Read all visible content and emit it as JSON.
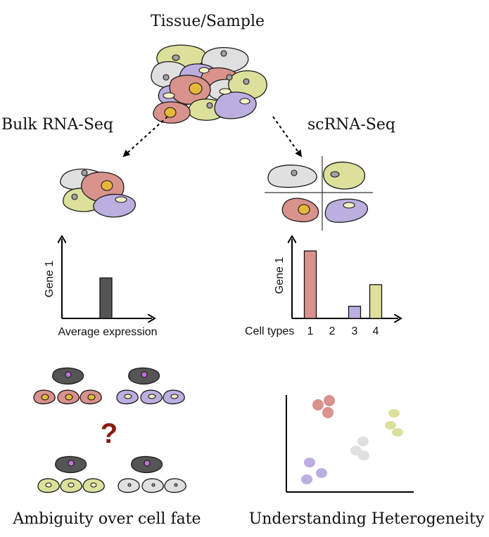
{
  "titles": {
    "top": "Tissue/Sample",
    "left_method": "Bulk RNA-Seq",
    "right_method": "scRNA-Seq",
    "bottom_left": "Ambiguity over cell fate",
    "bottom_right": "Understanding Heterogeneity"
  },
  "colors": {
    "pink": "#d9928c",
    "green": "#dde09b",
    "purple": "#bdaee0",
    "gray": "#e0e0e0",
    "dark": "#555555",
    "yellow_nucleus": "#e6b83a",
    "magenta_nucleus": "#c070d8",
    "question": "#8b1a10"
  },
  "bulk_chart": {
    "ylabel": "Gene 1",
    "xlabel": "Average expression",
    "value": 0.6
  },
  "sc_chart": {
    "ylabel": "Gene 1",
    "xlabel": "Cell types",
    "categories": [
      "1",
      "2",
      "3",
      "4"
    ],
    "values": [
      1.0,
      0,
      0.18,
      0.5
    ]
  },
  "question_mark": "?"
}
